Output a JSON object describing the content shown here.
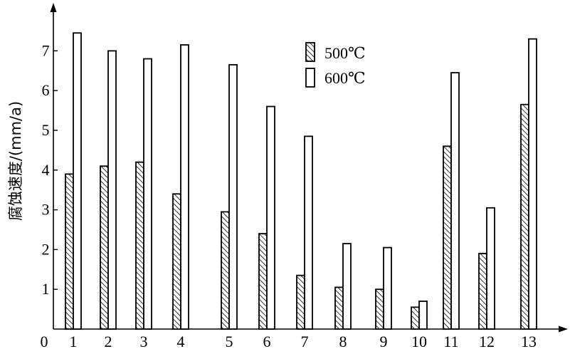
{
  "chart_data": {
    "type": "bar",
    "title": "",
    "xlabel": "",
    "ylabel": "腐蚀速度/(mm/a)",
    "origin_label": "0",
    "categories": [
      "1",
      "2",
      "3",
      "4",
      "5",
      "6",
      "7",
      "8",
      "9",
      "10",
      "11",
      "12",
      "13"
    ],
    "series": [
      {
        "name": "500℃",
        "pattern": "hatched",
        "values": [
          3.9,
          4.1,
          4.2,
          3.4,
          2.95,
          2.4,
          1.35,
          1.05,
          1.0,
          0.55,
          4.6,
          1.9,
          5.65
        ]
      },
      {
        "name": "600℃",
        "pattern": "open",
        "values": [
          7.45,
          7.0,
          6.8,
          7.15,
          6.65,
          5.6,
          4.85,
          2.15,
          2.05,
          0.7,
          6.45,
          3.05,
          7.3
        ]
      }
    ],
    "yticks": [
      "1",
      "2",
      "3",
      "4",
      "5",
      "6",
      "7"
    ],
    "ylim": [
      0,
      8.1
    ],
    "grid": false,
    "legend": "top-center",
    "colors": {
      "bar_stroke": "#000000",
      "bar_fill": "#ffffff"
    }
  }
}
